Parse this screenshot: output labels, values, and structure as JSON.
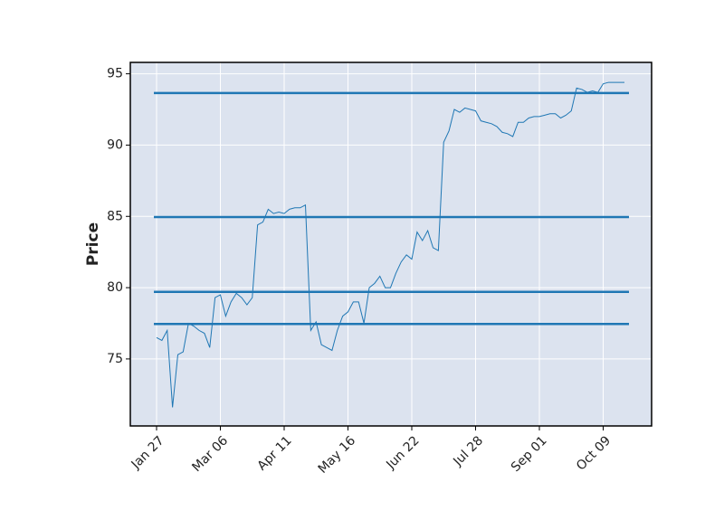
{
  "chart_data": {
    "type": "line",
    "ylabel": "Price",
    "categories": [
      "Jan 27",
      null,
      null,
      null,
      null,
      null,
      null,
      null,
      null,
      null,
      null,
      null,
      "Mar 06",
      null,
      null,
      null,
      null,
      null,
      null,
      null,
      null,
      null,
      null,
      null,
      "Apr 11",
      null,
      null,
      null,
      null,
      null,
      null,
      null,
      null,
      null,
      null,
      null,
      "May 16",
      null,
      null,
      null,
      null,
      null,
      null,
      null,
      null,
      null,
      null,
      null,
      "Jun 22",
      null,
      null,
      null,
      null,
      null,
      null,
      null,
      null,
      null,
      null,
      null,
      "Jul 28",
      null,
      null,
      null,
      null,
      null,
      null,
      null,
      null,
      null,
      null,
      null,
      "Sep 01",
      null,
      null,
      null,
      null,
      null,
      null,
      null,
      null,
      null,
      null,
      null,
      "Oct 09",
      null,
      null,
      null,
      null
    ],
    "values": [
      76.5,
      76.3,
      77.0,
      71.6,
      75.3,
      75.5,
      77.5,
      77.3,
      77.0,
      76.8,
      75.8,
      79.3,
      79.5,
      78.0,
      79.0,
      79.6,
      79.3,
      78.8,
      79.3,
      84.4,
      84.6,
      85.5,
      85.2,
      85.3,
      85.2,
      85.5,
      85.6,
      85.6,
      85.8,
      77.0,
      77.6,
      76.0,
      75.8,
      75.6,
      77.0,
      78.0,
      78.3,
      79.0,
      79.0,
      77.5,
      80.0,
      80.3,
      80.8,
      80.0,
      80.0,
      81.0,
      81.8,
      82.3,
      82.0,
      83.9,
      83.3,
      84.0,
      82.8,
      82.6,
      90.2,
      91.0,
      92.5,
      92.3,
      92.6,
      92.5,
      92.4,
      91.7,
      91.6,
      91.5,
      91.3,
      90.9,
      90.8,
      90.6,
      91.6,
      91.6,
      91.9,
      92.0,
      92.0,
      92.1,
      92.2,
      92.2,
      91.9,
      92.1,
      92.4,
      94.0,
      93.9,
      93.7,
      93.8,
      93.7,
      94.3,
      94.4,
      94.4,
      94.4,
      94.4
    ],
    "color": "#1f77b4",
    "hlines": {
      "values": [
        93.65,
        84.95,
        79.7,
        77.45
      ],
      "color": "#1f77b4"
    },
    "ylim": [
      70.3,
      95.8
    ],
    "yticks": [
      75,
      80,
      85,
      90,
      95
    ],
    "grid": true,
    "background": "#dce3ef"
  }
}
